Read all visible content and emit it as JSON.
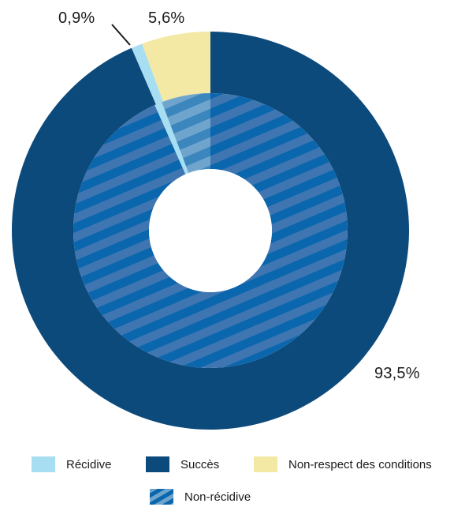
{
  "chart_data": {
    "type": "pie",
    "subtype": "nested-donut",
    "outer_ring": [
      {
        "label": "Succès",
        "value": 93.5,
        "display": "93,5%",
        "color": "#0d4a7c"
      },
      {
        "label": "Récidive",
        "value": 0.9,
        "display": "0,9%",
        "color": "#a8def1"
      },
      {
        "label": "Non-respect des conditions",
        "value": 5.6,
        "display": "5,6%",
        "color": "#f3e8a4"
      }
    ],
    "inner_ring": [
      {
        "label": "Non-récidive",
        "value": 93.5,
        "color": "#0a66ad",
        "stripe": "#3f76b2"
      },
      {
        "label": "",
        "value": 6.5,
        "color": "#3b86bd",
        "stripe": "#6fa5cd"
      }
    ],
    "legend": [
      {
        "label": "Récidive",
        "color": "#a8def1",
        "pattern": "solid"
      },
      {
        "label": "Succès",
        "color": "#0d4a7c",
        "pattern": "solid"
      },
      {
        "label": "Non-respect des conditions",
        "color": "#f3e8a4",
        "pattern": "solid"
      },
      {
        "label": "Non-récidive",
        "color": "#0a66ad",
        "pattern": "striped"
      }
    ],
    "legend_position": "bottom"
  }
}
